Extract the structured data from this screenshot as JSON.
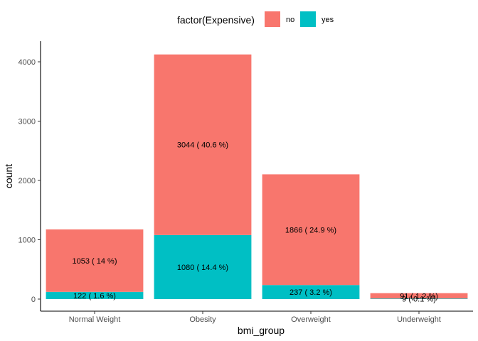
{
  "chart_data": {
    "type": "bar",
    "stacked": true,
    "categories": [
      "Normal Weight",
      "Obesity",
      "Overweight",
      "Underweight"
    ],
    "series": [
      {
        "name": "no",
        "color": "#F8766D",
        "values": [
          1053,
          3044,
          1866,
          91
        ],
        "labels": [
          "1053 ( 14 %)",
          "3044 ( 40.6 %)",
          "1866 ( 24.9 %)",
          "91 ( 1.2 %)"
        ]
      },
      {
        "name": "yes",
        "color": "#00BFC4",
        "values": [
          122,
          1080,
          237,
          9
        ],
        "labels": [
          "122 ( 1.6 %)",
          "1080 ( 14.4 %)",
          "237 ( 3.2 %)",
          "9 ( 0.1 %)"
        ]
      }
    ],
    "xlabel": "bmi_group",
    "ylabel": "count",
    "ylim": [
      0,
      4300
    ],
    "yticks": [
      0,
      1000,
      2000,
      3000,
      4000
    ],
    "legend": {
      "title": "factor(Expensive)",
      "position": "top"
    },
    "grid": false
  }
}
